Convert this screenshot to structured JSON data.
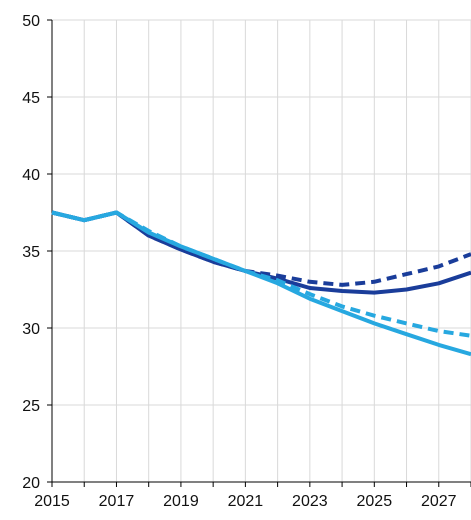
{
  "chart_data": {
    "type": "line",
    "title": "",
    "xlabel": "",
    "ylabel": "",
    "xlim": [
      2015,
      2028
    ],
    "ylim": [
      20,
      50
    ],
    "y_ticks": [
      20,
      25,
      30,
      35,
      40,
      45,
      50
    ],
    "x_ticks": [
      2015,
      2017,
      2019,
      2021,
      2023,
      2025,
      2027
    ],
    "grid": "vertical and horizontal",
    "legend": "none",
    "series": [
      {
        "color": "#1a3d9a",
        "style": "dashed",
        "points": [
          [
            2015,
            37.5
          ],
          [
            2016,
            37.0
          ],
          [
            2017,
            37.5
          ],
          [
            2018,
            36.0
          ],
          [
            2019,
            35.1
          ],
          [
            2020,
            34.3
          ],
          [
            2021,
            33.7
          ],
          [
            2022,
            33.4
          ],
          [
            2023,
            33.0
          ],
          [
            2024,
            32.8
          ],
          [
            2025,
            33.0
          ],
          [
            2026,
            33.5
          ],
          [
            2027,
            34.0
          ],
          [
            2028,
            34.8
          ]
        ]
      },
      {
        "color": "#1a3d9a",
        "style": "solid",
        "points": [
          [
            2015,
            37.5
          ],
          [
            2016,
            37.0
          ],
          [
            2017,
            37.5
          ],
          [
            2018,
            36.0
          ],
          [
            2019,
            35.1
          ],
          [
            2020,
            34.3
          ],
          [
            2021,
            33.7
          ],
          [
            2022,
            33.2
          ],
          [
            2023,
            32.6
          ],
          [
            2024,
            32.4
          ],
          [
            2025,
            32.3
          ],
          [
            2026,
            32.5
          ],
          [
            2027,
            32.9
          ],
          [
            2028,
            33.6
          ]
        ]
      },
      {
        "color": "#27a8e0",
        "style": "dashed",
        "points": [
          [
            2015,
            37.5
          ],
          [
            2016,
            37.0
          ],
          [
            2017,
            37.5
          ],
          [
            2018,
            36.3
          ],
          [
            2019,
            35.3
          ],
          [
            2020,
            34.5
          ],
          [
            2021,
            33.7
          ],
          [
            2022,
            33.1
          ],
          [
            2023,
            32.2
          ],
          [
            2024,
            31.4
          ],
          [
            2025,
            30.8
          ],
          [
            2026,
            30.3
          ],
          [
            2027,
            29.8
          ],
          [
            2028,
            29.5
          ]
        ]
      },
      {
        "color": "#27a8e0",
        "style": "solid",
        "points": [
          [
            2015,
            37.5
          ],
          [
            2016,
            37.0
          ],
          [
            2017,
            37.5
          ],
          [
            2018,
            36.2
          ],
          [
            2019,
            35.3
          ],
          [
            2020,
            34.5
          ],
          [
            2021,
            33.7
          ],
          [
            2022,
            32.9
          ],
          [
            2023,
            31.9
          ],
          [
            2024,
            31.1
          ],
          [
            2025,
            30.3
          ],
          [
            2026,
            29.6
          ],
          [
            2027,
            28.9
          ],
          [
            2028,
            28.3
          ]
        ]
      }
    ]
  }
}
